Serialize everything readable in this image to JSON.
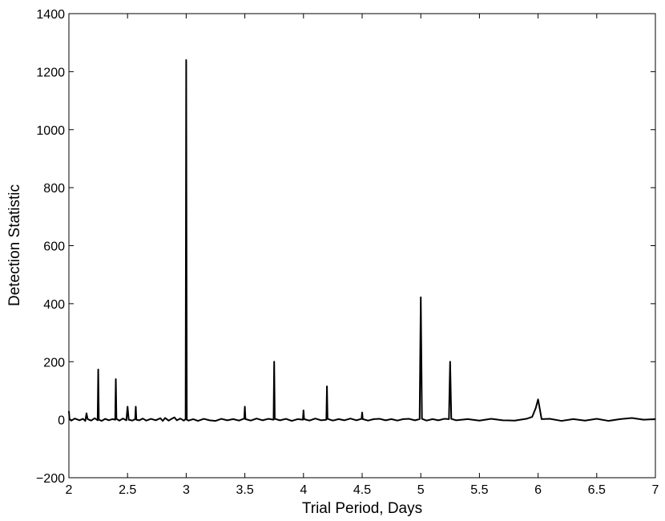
{
  "chart_data": {
    "type": "line",
    "title": "",
    "xlabel": "Trial Period, Days",
    "ylabel": "Detection Statistic",
    "xlim": [
      2,
      7
    ],
    "ylim": [
      -200,
      1400
    ],
    "xticks": [
      2,
      2.5,
      3,
      3.5,
      4,
      4.5,
      5,
      5.5,
      6,
      6.5,
      7
    ],
    "xtick_labels": [
      "2",
      "2.5",
      "3",
      "3.5",
      "4",
      "4.5",
      "5",
      "5.5",
      "6",
      "6.5",
      "7"
    ],
    "yticks": [
      -200,
      0,
      200,
      400,
      600,
      800,
      1000,
      1200,
      1400
    ],
    "ytick_labels": [
      "−200",
      "0",
      "200",
      "400",
      "600",
      "800",
      "1000",
      "1200",
      "1400"
    ],
    "grid": false,
    "line_color": "#000000",
    "series": [
      {
        "x": [
          2.0,
          2.005,
          2.02,
          2.05,
          2.09,
          2.12,
          2.14,
          2.15,
          2.16,
          2.19,
          2.22,
          2.245,
          2.25,
          2.255,
          2.28,
          2.31,
          2.34,
          2.37,
          2.395,
          2.4,
          2.405,
          2.43,
          2.46,
          2.49,
          2.5,
          2.51,
          2.54,
          2.565,
          2.57,
          2.575,
          2.6,
          2.63,
          2.66,
          2.7,
          2.74,
          2.78,
          2.8,
          2.82,
          2.85,
          2.88,
          2.9,
          2.92,
          2.95,
          2.98,
          2.995,
          3.0,
          3.005,
          3.02,
          3.06,
          3.1,
          3.15,
          3.2,
          3.25,
          3.3,
          3.35,
          3.4,
          3.45,
          3.495,
          3.5,
          3.505,
          3.55,
          3.6,
          3.65,
          3.7,
          3.745,
          3.75,
          3.755,
          3.8,
          3.85,
          3.9,
          3.95,
          3.995,
          4.0,
          4.005,
          4.05,
          4.1,
          4.15,
          4.195,
          4.2,
          4.205,
          4.25,
          4.3,
          4.35,
          4.4,
          4.45,
          4.495,
          4.5,
          4.505,
          4.55,
          4.6,
          4.65,
          4.7,
          4.75,
          4.8,
          4.85,
          4.9,
          4.95,
          4.99,
          5.0,
          5.01,
          5.05,
          5.1,
          5.15,
          5.2,
          5.24,
          5.25,
          5.26,
          5.3,
          5.4,
          5.5,
          5.6,
          5.7,
          5.8,
          5.9,
          5.95,
          5.98,
          6.0,
          6.03,
          6.1,
          6.2,
          6.3,
          6.4,
          6.5,
          6.6,
          6.7,
          6.8,
          6.9,
          7.0
        ],
        "y": [
          30,
          2,
          -3,
          4,
          -2,
          3,
          -4,
          22,
          2,
          -3,
          5,
          -2,
          173,
          0,
          -4,
          3,
          -2,
          2,
          0,
          140,
          3,
          -3,
          4,
          -2,
          45,
          0,
          -3,
          2,
          45,
          0,
          -2,
          4,
          -3,
          3,
          -2,
          5,
          -4,
          6,
          -3,
          4,
          8,
          -2,
          4,
          -3,
          2,
          1240,
          0,
          -3,
          2,
          -4,
          3,
          -2,
          -4,
          3,
          -2,
          2,
          -3,
          4,
          45,
          2,
          -3,
          4,
          -2,
          3,
          0,
          200,
          3,
          -2,
          3,
          -4,
          2,
          0,
          32,
          2,
          -3,
          4,
          -2,
          0,
          115,
          3,
          -3,
          2,
          -2,
          4,
          -2,
          3,
          25,
          2,
          -3,
          2,
          3,
          -2,
          2,
          -3,
          2,
          3,
          -2,
          2,
          422,
          3,
          -3,
          2,
          -2,
          3,
          2,
          200,
          3,
          -2,
          2,
          -3,
          3,
          -2,
          -3,
          3,
          10,
          40,
          70,
          2,
          3,
          -4,
          2,
          -3,
          3,
          -4,
          2,
          6,
          0,
          2
        ]
      }
    ]
  }
}
